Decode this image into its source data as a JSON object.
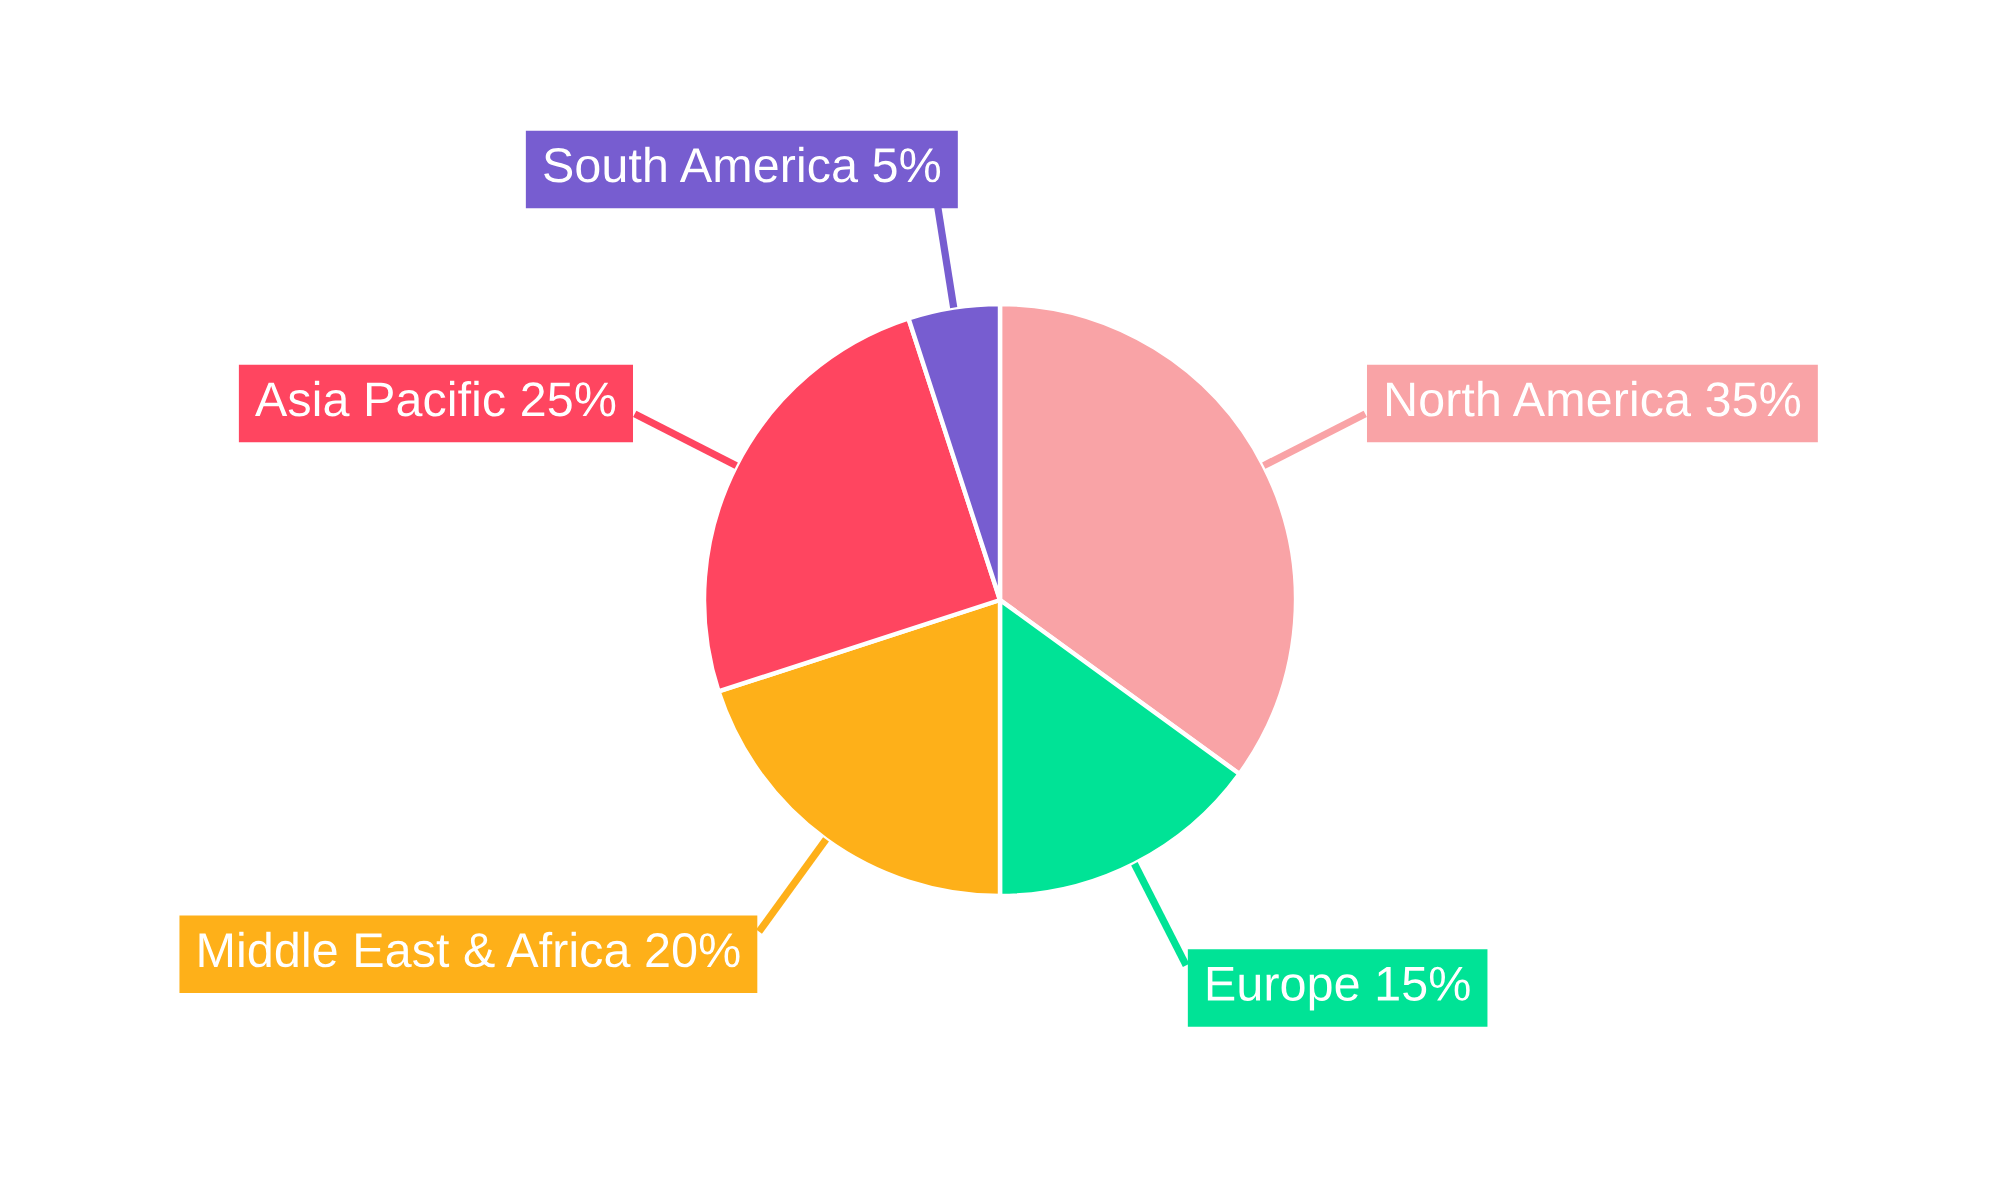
{
  "chart_data": {
    "type": "pie",
    "categories": [
      "North America",
      "Europe",
      "Middle East & Africa",
      "Asia Pacific",
      "South America"
    ],
    "values": [
      35,
      15,
      20,
      25,
      5
    ],
    "colors": [
      "#f9a3a6",
      "#00e396",
      "#feb019",
      "#ff4560",
      "#775dd0"
    ],
    "value_labels": [
      "35%",
      "15%",
      "20%",
      "25%",
      "5%"
    ]
  }
}
